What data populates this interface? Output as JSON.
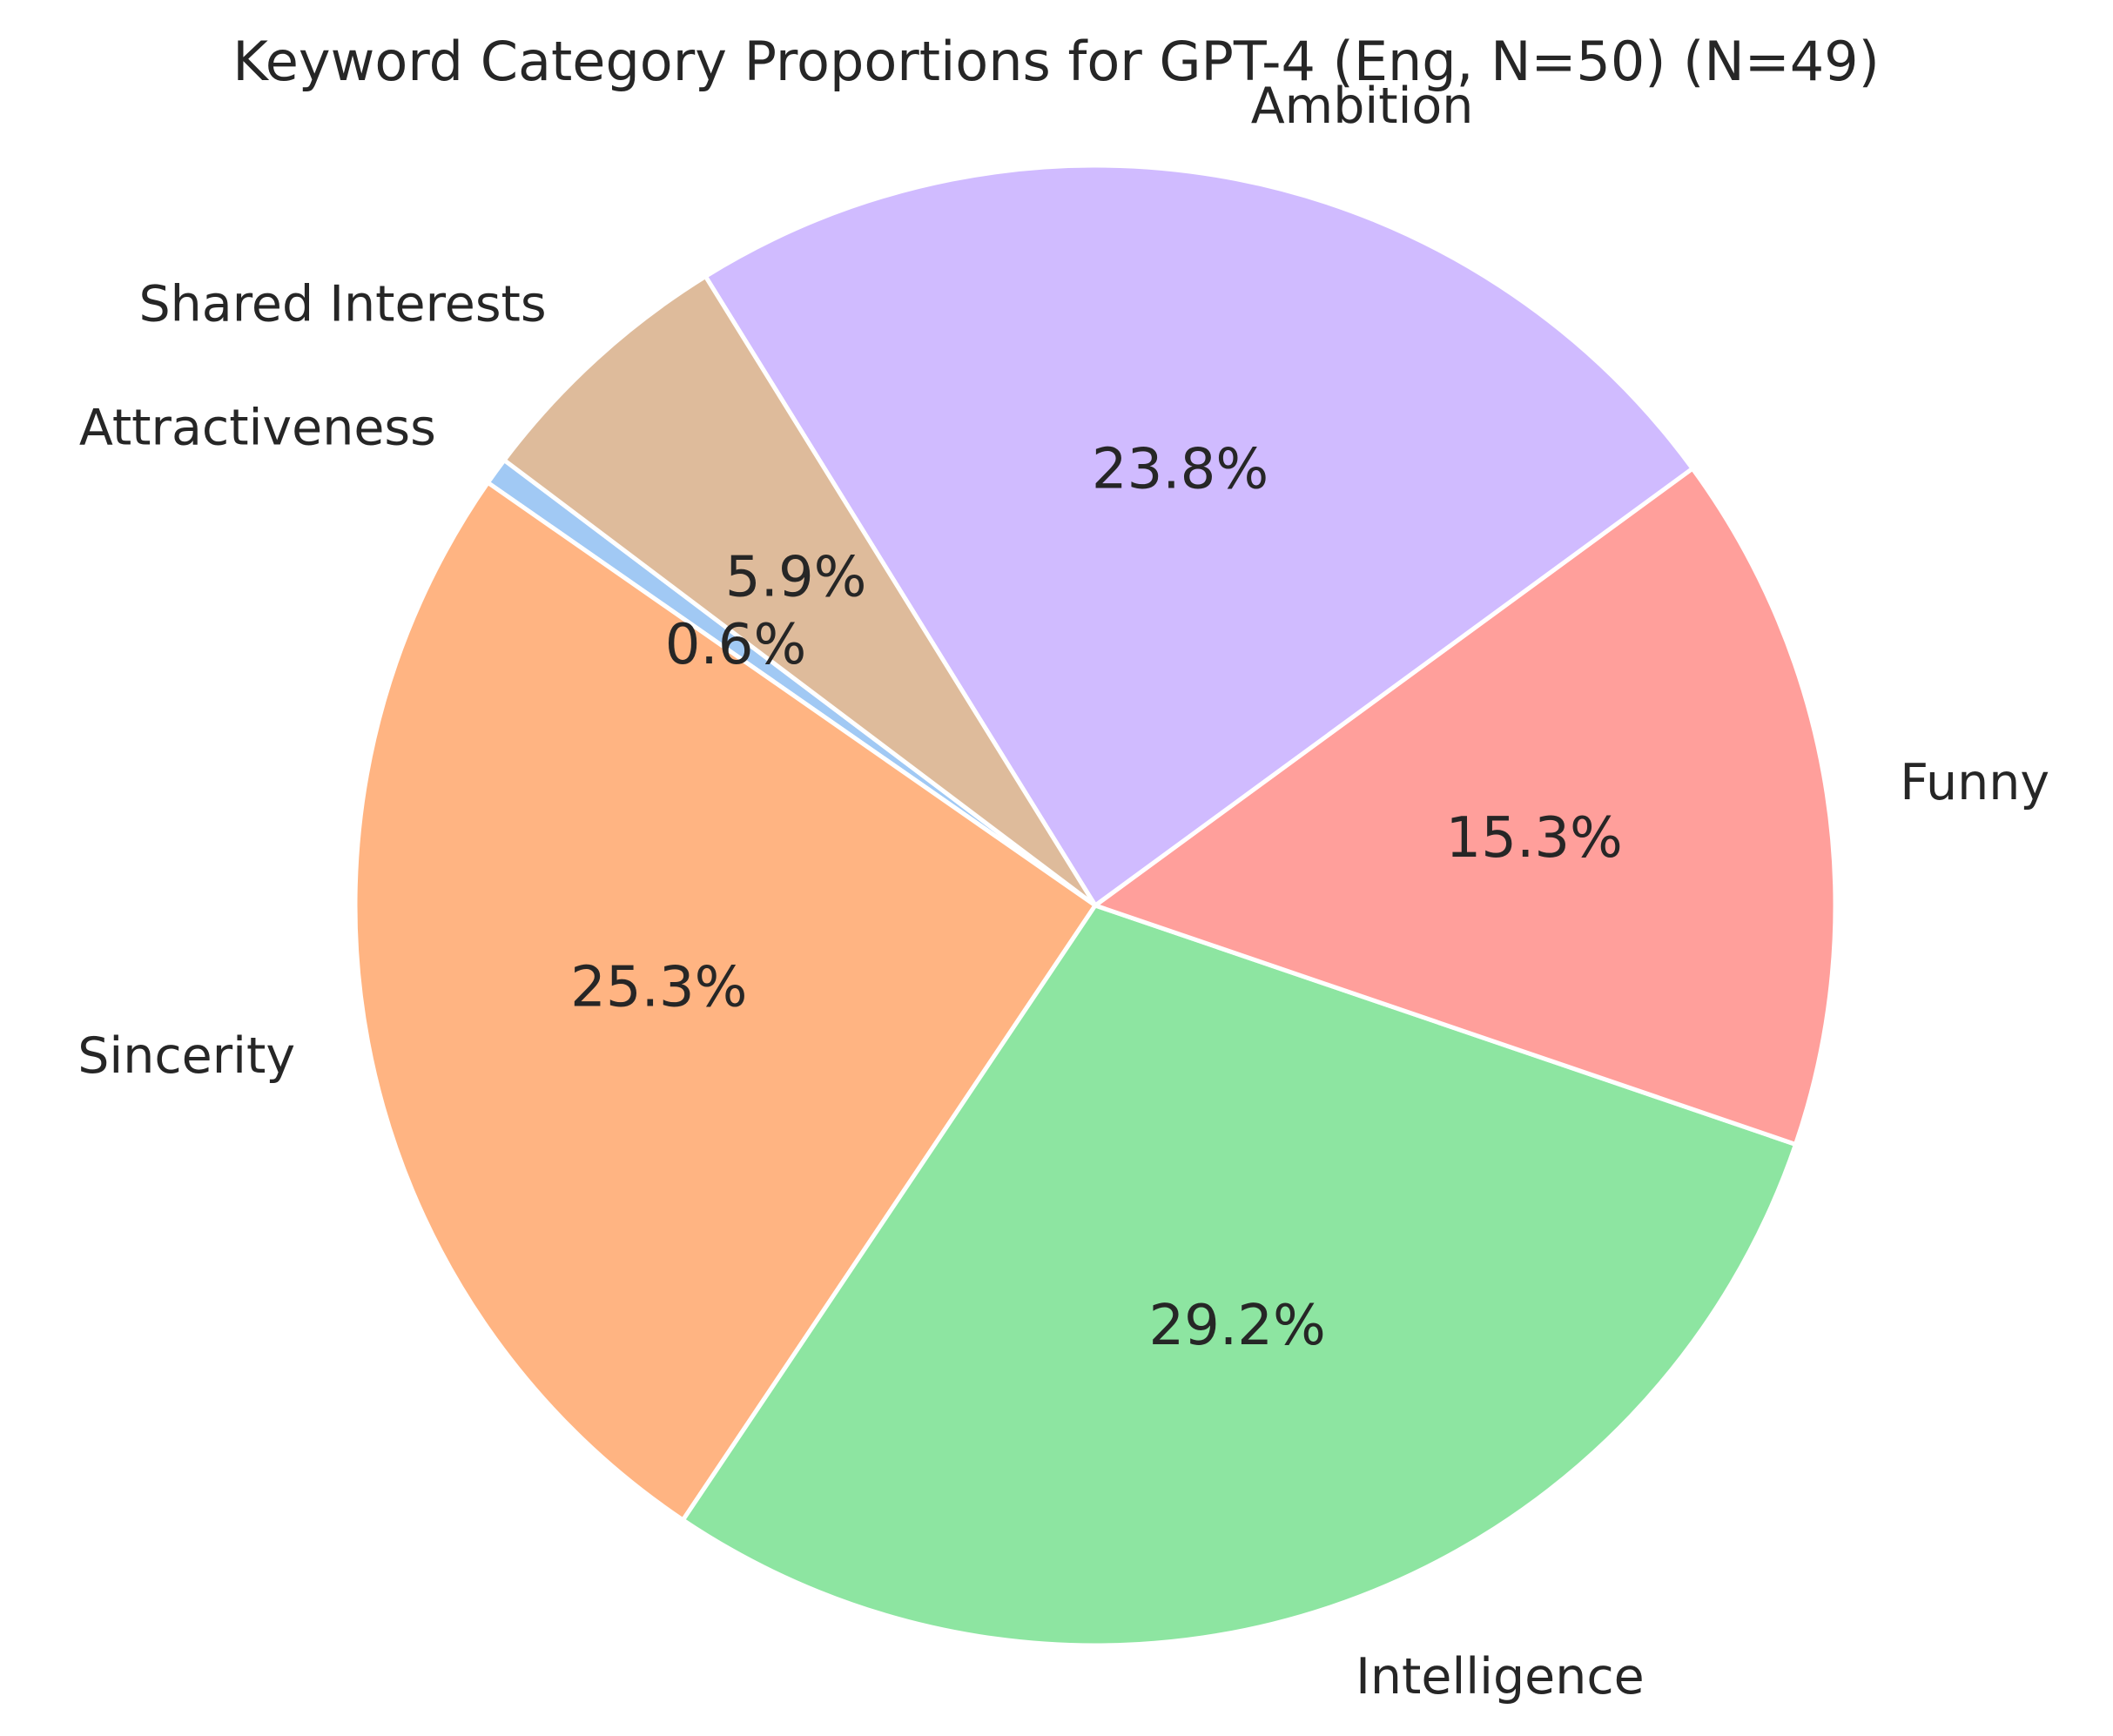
{
  "chart_data": {
    "type": "pie",
    "title": "Keyword Category Proportions for GPT-4 (Eng, N=50) (N=49)",
    "start_angle_deg": 143,
    "direction": "counterclockwise",
    "slices": [
      {
        "label": "Attractiveness",
        "value": 0.6,
        "pct_label": "0.6%",
        "color": "#a1c9f4"
      },
      {
        "label": "Sincerity",
        "value": 25.3,
        "pct_label": "25.3%",
        "color": "#ffb482"
      },
      {
        "label": "Intelligence",
        "value": 29.2,
        "pct_label": "29.2%",
        "color": "#8de5a1"
      },
      {
        "label": "Funny",
        "value": 15.3,
        "pct_label": "15.3%",
        "color": "#ff9f9b"
      },
      {
        "label": "Ambition",
        "value": 23.8,
        "pct_label": "23.8%",
        "color": "#d0bbff"
      },
      {
        "label": "Shared Interests",
        "value": 5.9,
        "pct_label": "5.9%",
        "color": "#debb9b"
      }
    ]
  }
}
